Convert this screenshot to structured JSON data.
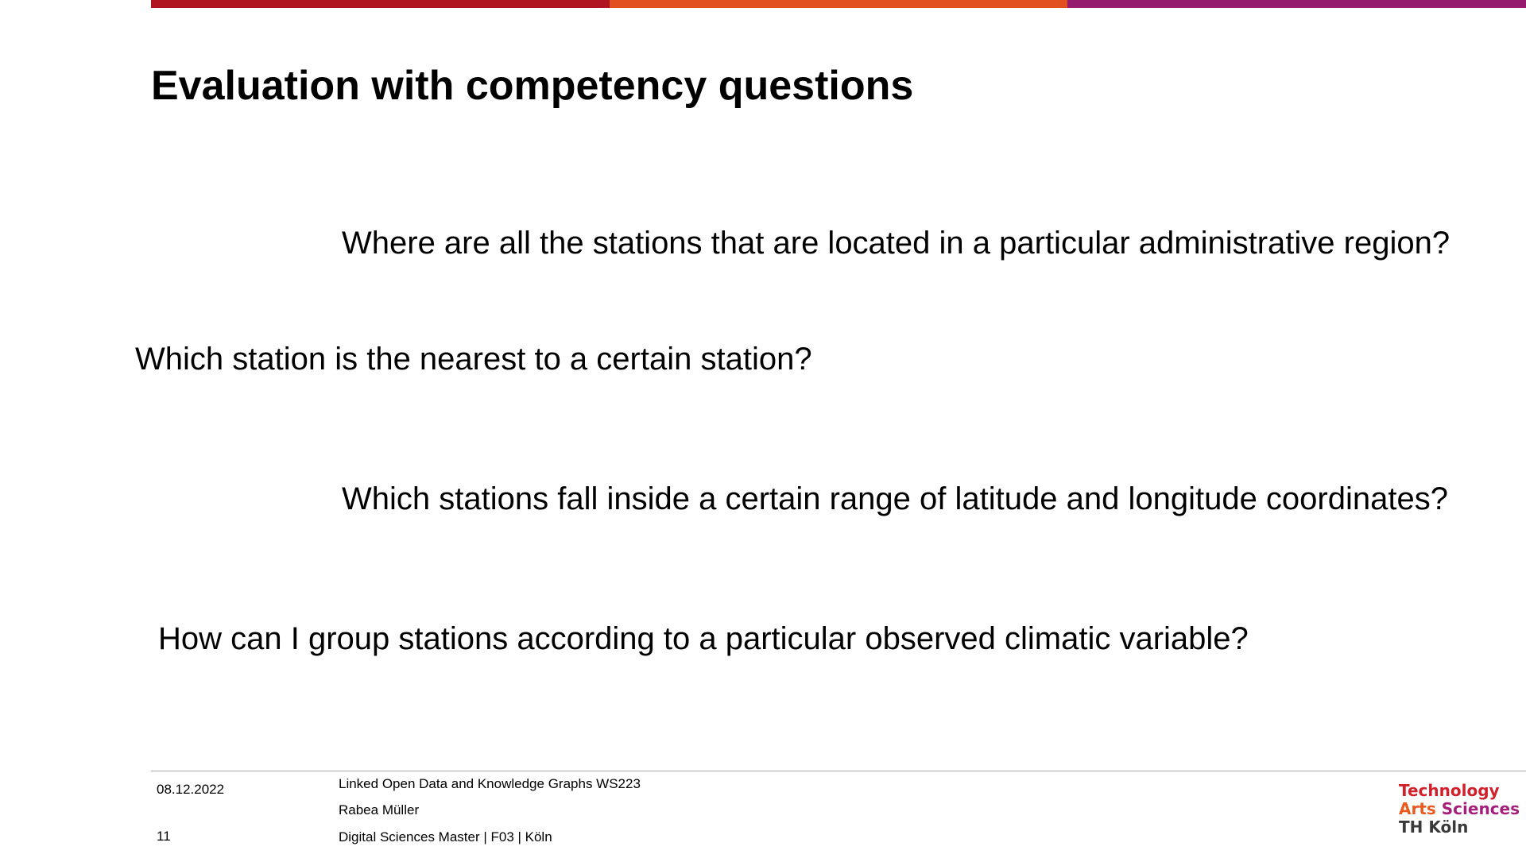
{
  "colors": {
    "bar_red": "#b01421",
    "bar_orange": "#e2501f",
    "bar_purple": "#951b6e",
    "logo_technology": "#d1202b",
    "logo_arts": "#ea5a1f",
    "logo_sciences": "#a51f7a",
    "logo_th": "#3a3a3a"
  },
  "slide": {
    "title": "Evaluation with competency questions",
    "questions": [
      "Where are all the stations that are located in a particular administrative region?",
      "Which station is the nearest to a certain station?",
      "Which stations fall inside a certain range of latitude and longitude coordinates?",
      "How can I group stations according to a particular observed climatic variable?"
    ]
  },
  "footer": {
    "date": "08.12.2022",
    "page": "11",
    "course": "Linked Open Data and Knowledge Graphs WS223",
    "author": "Rabea Müller",
    "department": "Digital Sciences Master | F03 | Köln"
  },
  "logo": {
    "line1": "Technology",
    "line2a": "Arts",
    "line2b": "Sciences",
    "line3": "TH Köln"
  }
}
